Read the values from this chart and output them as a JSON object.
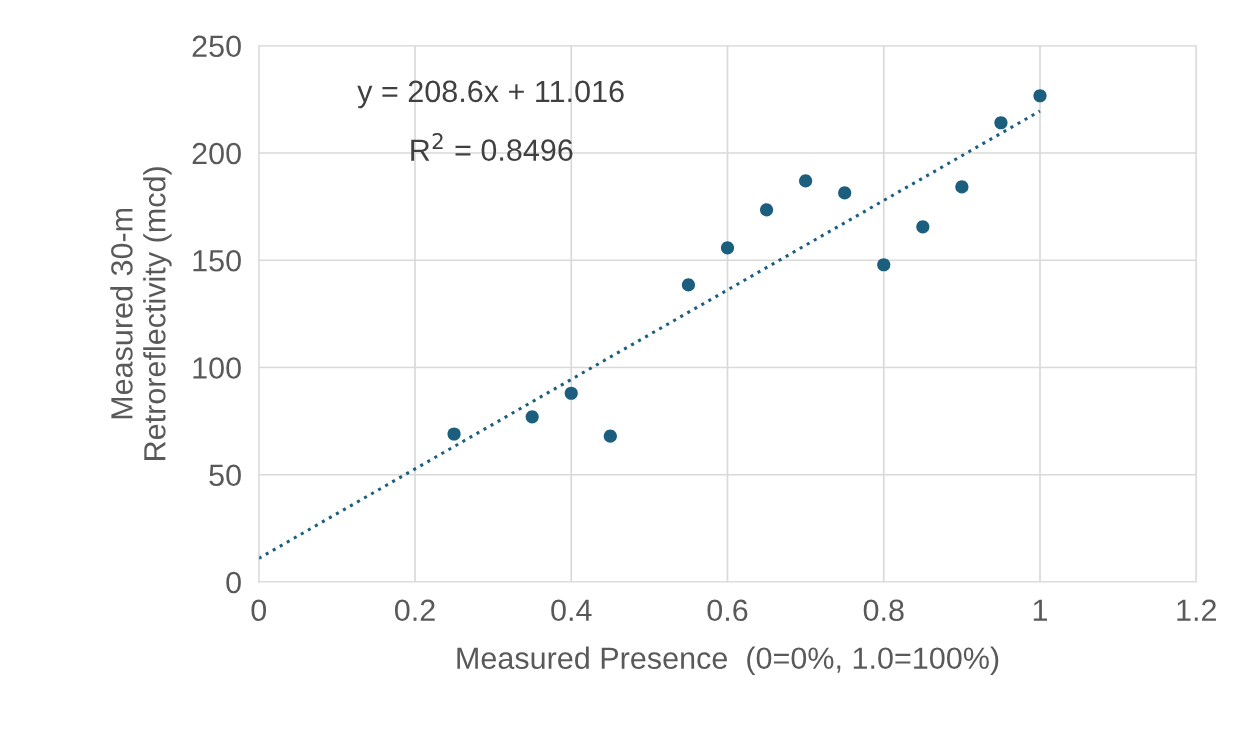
{
  "chart_data": {
    "type": "scatter",
    "xlabel": "Measured Presence  (0=0%, 1.0=100%)",
    "ylabel": "Measured 30-m\nRetroreflectivity (mcd)",
    "annotations": [
      "y = 208.6x + 11.016",
      "R$^{2}$ = 0.8496"
    ],
    "xlim": [
      0,
      1.2
    ],
    "xticks": [
      0,
      0.2,
      0.4,
      0.6,
      0.8,
      1,
      1.2
    ],
    "ylim": [
      0,
      250
    ],
    "yticks": [
      0,
      50,
      100,
      150,
      200,
      250
    ],
    "grid": true,
    "series": [
      {
        "color": "#1b5e7e",
        "marker": "circle",
        "x": [
          0.25,
          0.35,
          0.4,
          0.45,
          0.55,
          0.6,
          0.65,
          0.7,
          0.75,
          0.8,
          0.85,
          0.9,
          0.95,
          1.0
        ],
        "values": [
          69,
          77,
          88,
          68,
          138.5,
          155.8,
          173.5,
          187,
          181.4,
          147.9,
          165.6,
          184.2,
          214.1,
          226.7
        ]
      },
      {
        "type": "line",
        "color": "#1b5e7e",
        "line_style": "dotted",
        "marker": "none",
        "x": [
          0,
          1
        ],
        "values": [
          11,
          219.6
        ]
      }
    ]
  }
}
